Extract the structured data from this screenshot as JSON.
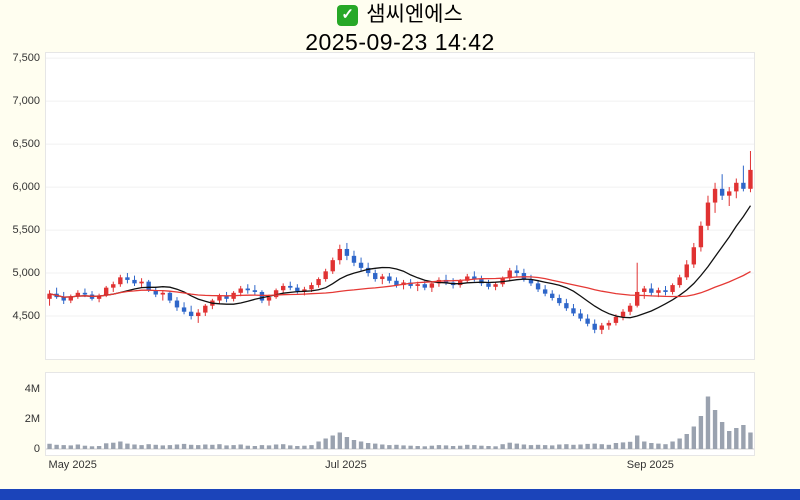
{
  "header": {
    "stock_name": "샘씨엔에스",
    "datetime": "2025-09-23 14:42",
    "check_glyph": "✓",
    "check_color": "#27a827"
  },
  "colors": {
    "background": "#fffef0",
    "panel_bg": "#ffffff",
    "panel_border": "#e6e6e6",
    "up": "#e03232",
    "down": "#2e66c9",
    "ma_short": "#111111",
    "ma_long": "#e53935",
    "volume_bar": "#9aa2af",
    "grid": "#f0f0f0",
    "axis_text": "#333333",
    "scrollbar": "#1b44ba"
  },
  "chart_data": {
    "type": "candlestick",
    "title": "샘씨엔에스",
    "subtitle": "2025-09-23 14:42",
    "legend_position": "none",
    "grid": true,
    "y_axis": {
      "min": 4000,
      "max": 7560,
      "ticks": [
        4500,
        5000,
        5500,
        6000,
        6500,
        7000,
        7500
      ],
      "tick_labels": [
        "4,500",
        "5,000",
        "5,500",
        "6,000",
        "6,500",
        "7,000",
        "7,500"
      ]
    },
    "volume_axis": {
      "min": 0,
      "max": 5000000,
      "ticks": [
        [
          0,
          "0"
        ],
        [
          2000000,
          "2M"
        ],
        [
          4000000,
          "4M"
        ]
      ]
    },
    "x_range": [
      "May 2025",
      "Sep 2025"
    ],
    "x_ticks": [
      {
        "label": "May 2025",
        "index": 0,
        "align": "start"
      },
      {
        "label": "Jul 2025",
        "index": 42,
        "align": "middle"
      },
      {
        "label": "Sep 2025",
        "index": 85,
        "align": "middle"
      }
    ],
    "overlays": [
      {
        "name": "ma-short-line",
        "window": 10,
        "color": "#111111"
      },
      {
        "name": "ma-long-line",
        "window": 30,
        "color": "#e53935"
      }
    ],
    "candles_format": [
      "open",
      "high",
      "low",
      "close",
      "volume"
    ],
    "candles": [
      [
        4700,
        4800,
        4620,
        4760,
        350000
      ],
      [
        4760,
        4830,
        4700,
        4720,
        280000
      ],
      [
        4720,
        4780,
        4640,
        4680,
        260000
      ],
      [
        4680,
        4750,
        4650,
        4730,
        240000
      ],
      [
        4730,
        4800,
        4700,
        4770,
        300000
      ],
      [
        4770,
        4820,
        4720,
        4750,
        220000
      ],
      [
        4750,
        4790,
        4680,
        4700,
        180000
      ],
      [
        4700,
        4760,
        4660,
        4740,
        200000
      ],
      [
        4740,
        4850,
        4720,
        4830,
        380000
      ],
      [
        4830,
        4900,
        4780,
        4870,
        420000
      ],
      [
        4870,
        4980,
        4840,
        4950,
        500000
      ],
      [
        4950,
        5000,
        4880,
        4920,
        360000
      ],
      [
        4920,
        4970,
        4850,
        4880,
        300000
      ],
      [
        4880,
        4940,
        4830,
        4900,
        260000
      ],
      [
        4900,
        4920,
        4780,
        4800,
        320000
      ],
      [
        4800,
        4840,
        4720,
        4750,
        280000
      ],
      [
        4750,
        4800,
        4680,
        4770,
        240000
      ],
      [
        4770,
        4790,
        4650,
        4680,
        260000
      ],
      [
        4680,
        4720,
        4560,
        4600,
        300000
      ],
      [
        4600,
        4660,
        4520,
        4550,
        340000
      ],
      [
        4550,
        4620,
        4460,
        4500,
        280000
      ],
      [
        4500,
        4580,
        4420,
        4540,
        260000
      ],
      [
        4540,
        4640,
        4500,
        4620,
        300000
      ],
      [
        4620,
        4700,
        4580,
        4680,
        280000
      ],
      [
        4680,
        4760,
        4640,
        4730,
        320000
      ],
      [
        4730,
        4780,
        4660,
        4700,
        240000
      ],
      [
        4700,
        4790,
        4670,
        4770,
        260000
      ],
      [
        4770,
        4850,
        4730,
        4820,
        300000
      ],
      [
        4820,
        4870,
        4760,
        4800,
        220000
      ],
      [
        4800,
        4860,
        4740,
        4780,
        200000
      ],
      [
        4780,
        4800,
        4650,
        4680,
        260000
      ],
      [
        4680,
        4750,
        4620,
        4720,
        240000
      ],
      [
        4720,
        4820,
        4700,
        4800,
        300000
      ],
      [
        4800,
        4880,
        4770,
        4850,
        320000
      ],
      [
        4850,
        4900,
        4800,
        4830,
        240000
      ],
      [
        4830,
        4870,
        4760,
        4790,
        200000
      ],
      [
        4790,
        4840,
        4740,
        4810,
        220000
      ],
      [
        4810,
        4890,
        4780,
        4860,
        260000
      ],
      [
        4860,
        4950,
        4830,
        4930,
        500000
      ],
      [
        4930,
        5050,
        4900,
        5020,
        700000
      ],
      [
        5020,
        5180,
        4990,
        5150,
        900000
      ],
      [
        5150,
        5330,
        5100,
        5280,
        1100000
      ],
      [
        5280,
        5350,
        5150,
        5200,
        800000
      ],
      [
        5200,
        5260,
        5080,
        5120,
        600000
      ],
      [
        5120,
        5180,
        5020,
        5060,
        500000
      ],
      [
        5060,
        5120,
        4960,
        5000,
        400000
      ],
      [
        5000,
        5040,
        4900,
        4930,
        360000
      ],
      [
        4930,
        4990,
        4870,
        4960,
        300000
      ],
      [
        4960,
        5000,
        4880,
        4910,
        260000
      ],
      [
        4910,
        4950,
        4830,
        4860,
        280000
      ],
      [
        4860,
        4920,
        4810,
        4890,
        240000
      ],
      [
        4890,
        4930,
        4820,
        4850,
        220000
      ],
      [
        4850,
        4900,
        4790,
        4870,
        200000
      ],
      [
        4870,
        4910,
        4800,
        4830,
        180000
      ],
      [
        4830,
        4900,
        4780,
        4880,
        220000
      ],
      [
        4880,
        4950,
        4840,
        4920,
        260000
      ],
      [
        4920,
        4980,
        4860,
        4890,
        240000
      ],
      [
        4890,
        4940,
        4820,
        4860,
        200000
      ],
      [
        4860,
        4930,
        4830,
        4910,
        220000
      ],
      [
        4910,
        4990,
        4880,
        4960,
        280000
      ],
      [
        4960,
        5020,
        4900,
        4930,
        260000
      ],
      [
        4930,
        4970,
        4850,
        4880,
        220000
      ],
      [
        4880,
        4920,
        4810,
        4840,
        200000
      ],
      [
        4840,
        4900,
        4800,
        4870,
        180000
      ],
      [
        4870,
        4960,
        4840,
        4940,
        320000
      ],
      [
        4940,
        5060,
        4910,
        5030,
        420000
      ],
      [
        5030,
        5090,
        4960,
        5000,
        360000
      ],
      [
        5000,
        5050,
        4900,
        4930,
        300000
      ],
      [
        4930,
        4980,
        4850,
        4880,
        260000
      ],
      [
        4880,
        4920,
        4780,
        4810,
        280000
      ],
      [
        4810,
        4860,
        4730,
        4760,
        260000
      ],
      [
        4760,
        4800,
        4680,
        4710,
        240000
      ],
      [
        4710,
        4750,
        4620,
        4650,
        300000
      ],
      [
        4650,
        4700,
        4560,
        4590,
        320000
      ],
      [
        4590,
        4640,
        4500,
        4530,
        280000
      ],
      [
        4530,
        4580,
        4440,
        4470,
        300000
      ],
      [
        4470,
        4520,
        4380,
        4410,
        340000
      ],
      [
        4410,
        4460,
        4300,
        4340,
        360000
      ],
      [
        4340,
        4420,
        4290,
        4390,
        320000
      ],
      [
        4390,
        4450,
        4340,
        4420,
        280000
      ],
      [
        4420,
        4520,
        4390,
        4490,
        400000
      ],
      [
        4490,
        4580,
        4450,
        4550,
        440000
      ],
      [
        4550,
        4650,
        4510,
        4620,
        480000
      ],
      [
        4620,
        5120,
        4600,
        4780,
        900000
      ],
      [
        4780,
        4850,
        4700,
        4820,
        500000
      ],
      [
        4820,
        4880,
        4740,
        4770,
        400000
      ],
      [
        4770,
        4830,
        4720,
        4800,
        360000
      ],
      [
        4800,
        4850,
        4740,
        4780,
        320000
      ],
      [
        4780,
        4880,
        4750,
        4860,
        500000
      ],
      [
        4860,
        4980,
        4830,
        4950,
        700000
      ],
      [
        4950,
        5150,
        4920,
        5100,
        1000000
      ],
      [
        5100,
        5350,
        5060,
        5300,
        1500000
      ],
      [
        5300,
        5600,
        5250,
        5550,
        2200000
      ],
      [
        5550,
        5900,
        5500,
        5820,
        3500000
      ],
      [
        5820,
        6050,
        5700,
        5980,
        2600000
      ],
      [
        5980,
        6150,
        5850,
        5900,
        1800000
      ],
      [
        5900,
        6000,
        5780,
        5950,
        1200000
      ],
      [
        5950,
        6100,
        5870,
        6050,
        1400000
      ],
      [
        6050,
        6250,
        5950,
        5980,
        1600000
      ],
      [
        5980,
        6420,
        5940,
        6200,
        1100000
      ]
    ]
  }
}
